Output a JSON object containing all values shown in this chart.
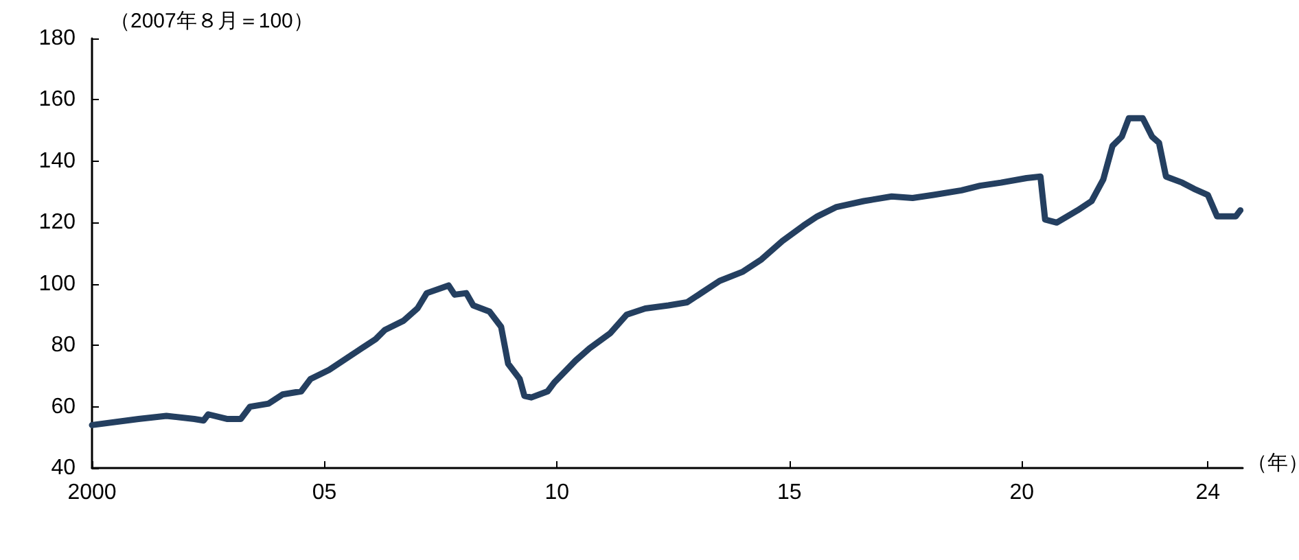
{
  "chart_data": {
    "type": "line",
    "ylabel": "（2007年８月＝100）",
    "xlabel": "（年）",
    "x": [
      2000.0,
      2001.0,
      2001.6,
      2002.2,
      2002.4,
      2002.5,
      2002.9,
      2003.2,
      2003.4,
      2003.8,
      2004.1,
      2004.5,
      2004.7,
      2005.1,
      2005.5,
      2005.8,
      2006.1,
      2006.3,
      2006.7,
      2007.0,
      2007.2,
      2007.67,
      2007.8,
      2008.05,
      2008.2,
      2008.55,
      2008.8,
      2008.95,
      2009.2,
      2009.3,
      2009.45,
      2009.8,
      2009.95,
      2010.4,
      2010.7,
      2011.15,
      2011.5,
      2011.9,
      2012.4,
      2012.8,
      2013.1,
      2013.5,
      2014.0,
      2014.4,
      2014.85,
      2015.3,
      2015.6,
      2016.0,
      2016.6,
      2017.2,
      2017.65,
      2018.1,
      2018.7,
      2019.1,
      2019.55,
      2020.1,
      2020.4,
      2020.5,
      2020.75,
      2021.2,
      2021.5,
      2021.75,
      2021.95,
      2022.15,
      2022.3,
      2022.6,
      2022.8,
      2022.95,
      2023.1,
      2023.45,
      2023.7,
      2024.0,
      2024.2,
      2024.6,
      2024.7
    ],
    "series": [
      {
        "color": "#243f60",
        "values": [
          54,
          56,
          57,
          56,
          55.5,
          57.5,
          56,
          56,
          60,
          61,
          64,
          65,
          69,
          72,
          76,
          79,
          82,
          85,
          88,
          92,
          97,
          99.5,
          96.5,
          97,
          93,
          91,
          86,
          74,
          69,
          63.5,
          63,
          65,
          68,
          75,
          79,
          84,
          90,
          92,
          93,
          94,
          97,
          101,
          104,
          108,
          114,
          119,
          122,
          125,
          127,
          128.5,
          128,
          129,
          130.5,
          132,
          133,
          134.5,
          135,
          121,
          120,
          124,
          127,
          134,
          145,
          148,
          154,
          154,
          148,
          146,
          135,
          133,
          131,
          129,
          122,
          122,
          124
        ]
      }
    ],
    "xlim": [
      2000,
      2024.75
    ],
    "xticks": [
      {
        "value": 2000,
        "label": "2000"
      },
      {
        "value": 2005,
        "label": "05"
      },
      {
        "value": 2010,
        "label": "10"
      },
      {
        "value": 2015,
        "label": "15"
      },
      {
        "value": 2020,
        "label": "20"
      },
      {
        "value": 2024,
        "label": "24"
      }
    ],
    "ylim": [
      40,
      180
    ],
    "yticks": [
      40,
      60,
      80,
      100,
      120,
      140,
      160,
      180
    ],
    "grid": false,
    "marker": "none",
    "line_style": "solid"
  }
}
